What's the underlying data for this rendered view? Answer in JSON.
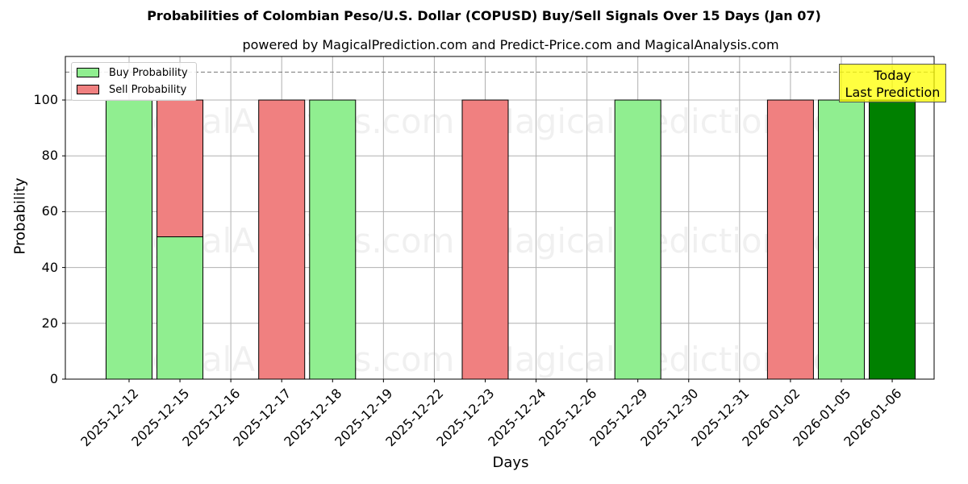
{
  "chart_data": {
    "type": "bar",
    "stacked": true,
    "title": "Probabilities of Colombian Peso/U.S. Dollar (COPUSD) Buy/Sell Signals Over 15 Days (Jan 07)",
    "subtitle": "powered by MagicalPrediction.com and Predict-Price.com and MagicalAnalysis.com",
    "xlabel": "Days",
    "ylabel": "Probability",
    "ylim": [
      0,
      115
    ],
    "yticks": [
      0,
      20,
      40,
      60,
      80,
      100
    ],
    "grid": true,
    "legend_position": "upper left",
    "reference_line": {
      "y": 110,
      "style": "dashed"
    },
    "categories": [
      "2025-12-12",
      "2025-12-15",
      "2025-12-16",
      "2025-12-17",
      "2025-12-18",
      "2025-12-19",
      "2025-12-22",
      "2025-12-23",
      "2025-12-24",
      "2025-12-26",
      "2025-12-29",
      "2025-12-30",
      "2025-12-31",
      "2026-01-02",
      "2026-01-05",
      "2026-01-06"
    ],
    "series": [
      {
        "name": "Buy Probability",
        "color": "#90ee90",
        "values": [
          100,
          51,
          0,
          0,
          100,
          0,
          0,
          0,
          0,
          0,
          100,
          0,
          0,
          0,
          100,
          100
        ]
      },
      {
        "name": "Sell Probability",
        "color": "#f08080",
        "values": [
          0,
          49,
          0,
          100,
          0,
          0,
          0,
          100,
          0,
          0,
          0,
          0,
          0,
          100,
          0,
          0
        ]
      }
    ],
    "highlight": {
      "category": "2026-01-06",
      "color": "#008000",
      "label": "Today\nLast Prediction"
    },
    "watermarks": [
      "MagicalAnalysis.com",
      "MagicalPrediction.com"
    ]
  },
  "legend": {
    "buy": "Buy Probability",
    "sell": "Sell Probability"
  },
  "annotation": {
    "line1": "Today",
    "line2": "Last Prediction"
  }
}
